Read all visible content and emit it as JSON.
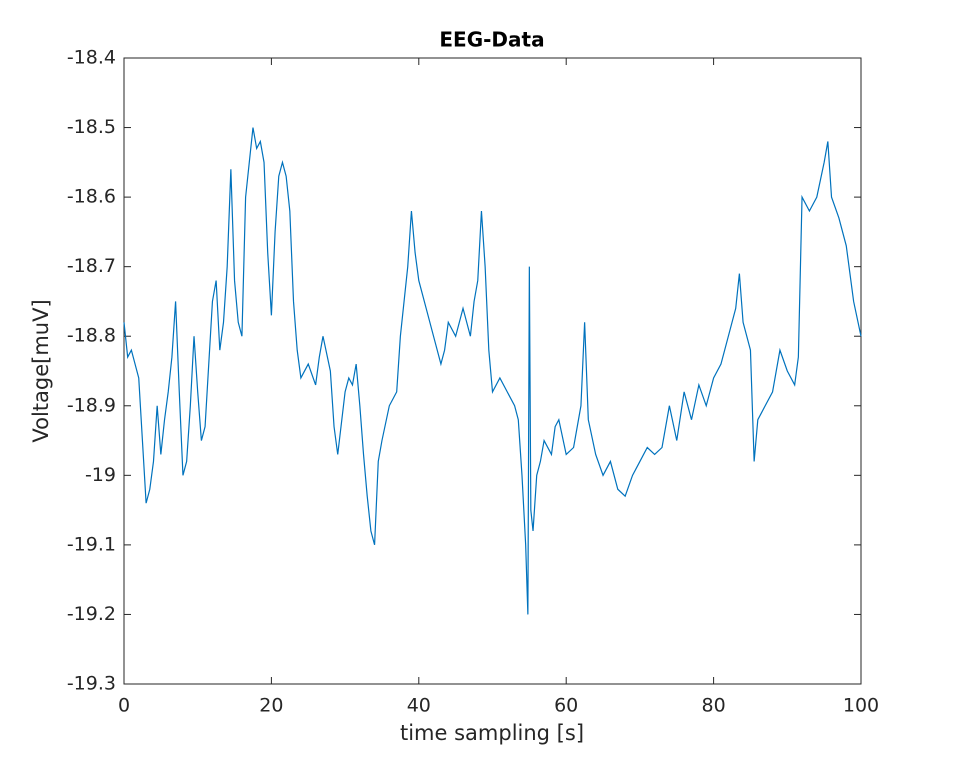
{
  "chart_data": {
    "type": "line",
    "title": "EEG-Data",
    "xlabel": "time sampling [s]",
    "ylabel": "Voltage[muV]",
    "x": [
      0,
      0.5,
      1,
      2,
      2.5,
      3,
      3.5,
      4,
      4.5,
      5,
      5.5,
      6,
      6.5,
      7,
      7.5,
      8,
      8.5,
      9,
      9.5,
      10,
      10.5,
      11,
      12,
      12.5,
      13,
      13.5,
      14,
      14.5,
      15,
      15.5,
      16,
      16.5,
      17,
      17.5,
      18,
      18.5,
      19,
      19.5,
      20,
      20.5,
      21,
      21.5,
      22,
      22.5,
      23,
      23.5,
      24,
      25,
      26,
      26.5,
      27,
      28,
      28.5,
      29,
      30,
      30.5,
      31,
      31.5,
      32,
      32.5,
      33,
      33.5,
      34,
      34.5,
      35,
      36,
      37,
      37.5,
      38,
      38.5,
      39,
      39.5,
      40,
      41,
      42,
      43,
      43.5,
      44,
      45,
      46,
      47,
      47.5,
      48,
      48.5,
      49,
      49.5,
      50,
      51,
      52,
      53,
      53.5,
      54,
      54.5,
      54.8,
      55,
      55.2,
      55.5,
      56,
      56.5,
      57,
      58,
      58.5,
      59,
      60,
      61,
      62,
      62.5,
      63,
      64,
      65,
      66,
      67,
      68,
      69,
      70,
      71,
      72,
      73,
      74,
      75,
      76,
      77,
      78,
      79,
      80,
      81,
      82,
      83,
      83.5,
      84,
      85,
      85.5,
      86,
      87,
      88,
      89,
      90,
      91,
      91.5,
      92,
      93,
      94,
      95,
      95.5,
      96,
      97,
      98,
      99,
      100
    ],
    "series": [
      {
        "name": "EEG",
        "color": "#0072bd",
        "values": [
          -18.78,
          -18.83,
          -18.82,
          -18.86,
          -18.95,
          -19.04,
          -19.02,
          -18.98,
          -18.9,
          -18.97,
          -18.92,
          -18.88,
          -18.83,
          -18.75,
          -18.88,
          -19.0,
          -18.98,
          -18.9,
          -18.8,
          -18.88,
          -18.95,
          -18.93,
          -18.75,
          -18.72,
          -18.82,
          -18.78,
          -18.7,
          -18.56,
          -18.72,
          -18.78,
          -18.8,
          -18.6,
          -18.55,
          -18.5,
          -18.53,
          -18.52,
          -18.55,
          -18.68,
          -18.77,
          -18.65,
          -18.57,
          -18.55,
          -18.57,
          -18.62,
          -18.75,
          -18.82,
          -18.86,
          -18.84,
          -18.87,
          -18.83,
          -18.8,
          -18.85,
          -18.93,
          -18.97,
          -18.88,
          -18.86,
          -18.87,
          -18.84,
          -18.9,
          -18.97,
          -19.03,
          -19.08,
          -19.1,
          -18.98,
          -18.95,
          -18.9,
          -18.88,
          -18.8,
          -18.75,
          -18.7,
          -18.62,
          -18.68,
          -18.72,
          -18.76,
          -18.8,
          -18.84,
          -18.82,
          -18.78,
          -18.8,
          -18.76,
          -18.8,
          -18.75,
          -18.72,
          -18.62,
          -18.7,
          -18.82,
          -18.88,
          -18.86,
          -18.88,
          -18.9,
          -18.92,
          -19.0,
          -19.1,
          -19.2,
          -18.7,
          -19.05,
          -19.08,
          -19.0,
          -18.98,
          -18.95,
          -18.97,
          -18.93,
          -18.92,
          -18.97,
          -18.96,
          -18.9,
          -18.78,
          -18.92,
          -18.97,
          -19.0,
          -18.98,
          -19.02,
          -19.03,
          -19.0,
          -18.98,
          -18.96,
          -18.97,
          -18.96,
          -18.9,
          -18.95,
          -18.88,
          -18.92,
          -18.87,
          -18.9,
          -18.86,
          -18.84,
          -18.8,
          -18.76,
          -18.71,
          -18.78,
          -18.82,
          -18.98,
          -18.92,
          -18.9,
          -18.88,
          -18.82,
          -18.85,
          -18.87,
          -18.83,
          -18.6,
          -18.62,
          -18.6,
          -18.55,
          -18.52,
          -18.6,
          -18.63,
          -18.67,
          -18.75,
          -18.8
        ]
      }
    ],
    "xlim": [
      0,
      100
    ],
    "xticks": [
      0,
      20,
      40,
      60,
      80,
      100
    ],
    "ylim": [
      -19.3,
      -18.4
    ],
    "yticks": [
      -19.3,
      -19.2,
      -19.1,
      -19,
      -18.9,
      -18.8,
      -18.7,
      -18.6,
      -18.5,
      -18.4
    ]
  }
}
